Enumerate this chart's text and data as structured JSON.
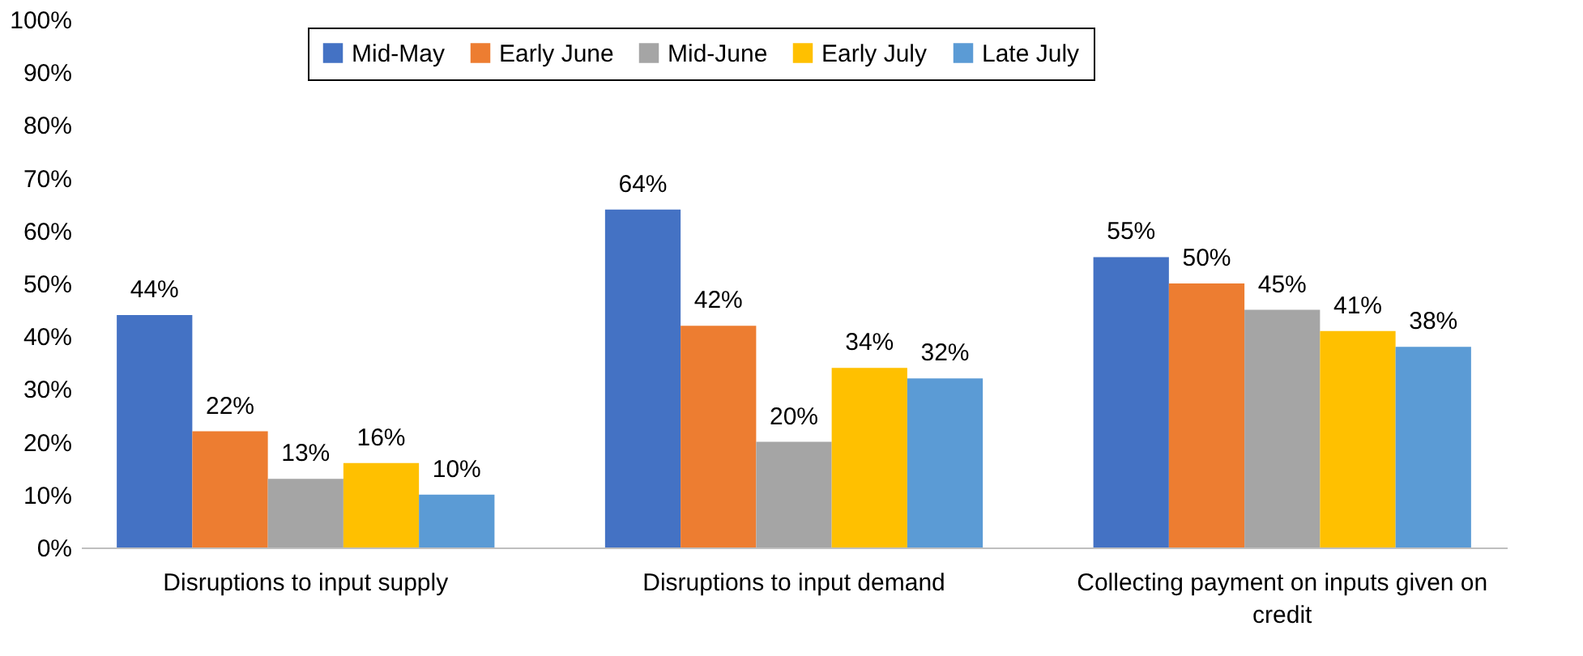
{
  "chart_data": {
    "type": "bar",
    "categories": [
      "Disruptions to input supply",
      "Disruptions to input demand",
      "Collecting payment on inputs given on credit"
    ],
    "series": [
      {
        "name": "Mid-May",
        "color": "#4472c4",
        "values": [
          44,
          64,
          55
        ],
        "value_labels": [
          "44%",
          "64%",
          "55%"
        ]
      },
      {
        "name": "Early June",
        "color": "#ed7d31",
        "values": [
          22,
          42,
          50
        ],
        "value_labels": [
          "22%",
          "42%",
          "50%"
        ]
      },
      {
        "name": "Mid-June",
        "color": "#a5a5a5",
        "values": [
          13,
          20,
          45
        ],
        "value_labels": [
          "13%",
          "20%",
          "45%"
        ]
      },
      {
        "name": "Early July",
        "color": "#ffc000",
        "values": [
          16,
          34,
          41
        ],
        "value_labels": [
          "16%",
          "34%",
          "41%"
        ]
      },
      {
        "name": "Late July",
        "color": "#5b9bd5",
        "values": [
          10,
          32,
          38
        ],
        "value_labels": [
          "10%",
          "32%",
          "38%"
        ]
      }
    ],
    "ylim": [
      0,
      100
    ],
    "yticks": [
      {
        "value": 0,
        "label": "0%"
      },
      {
        "value": 10,
        "label": "10%"
      },
      {
        "value": 20,
        "label": "20%"
      },
      {
        "value": 30,
        "label": "30%"
      },
      {
        "value": 40,
        "label": "40%"
      },
      {
        "value": 50,
        "label": "50%"
      },
      {
        "value": 60,
        "label": "60%"
      },
      {
        "value": 70,
        "label": "70%"
      },
      {
        "value": 80,
        "label": "80%"
      },
      {
        "value": 90,
        "label": "90%"
      },
      {
        "value": 100,
        "label": "100%"
      }
    ],
    "grid": false,
    "legend": "top"
  }
}
